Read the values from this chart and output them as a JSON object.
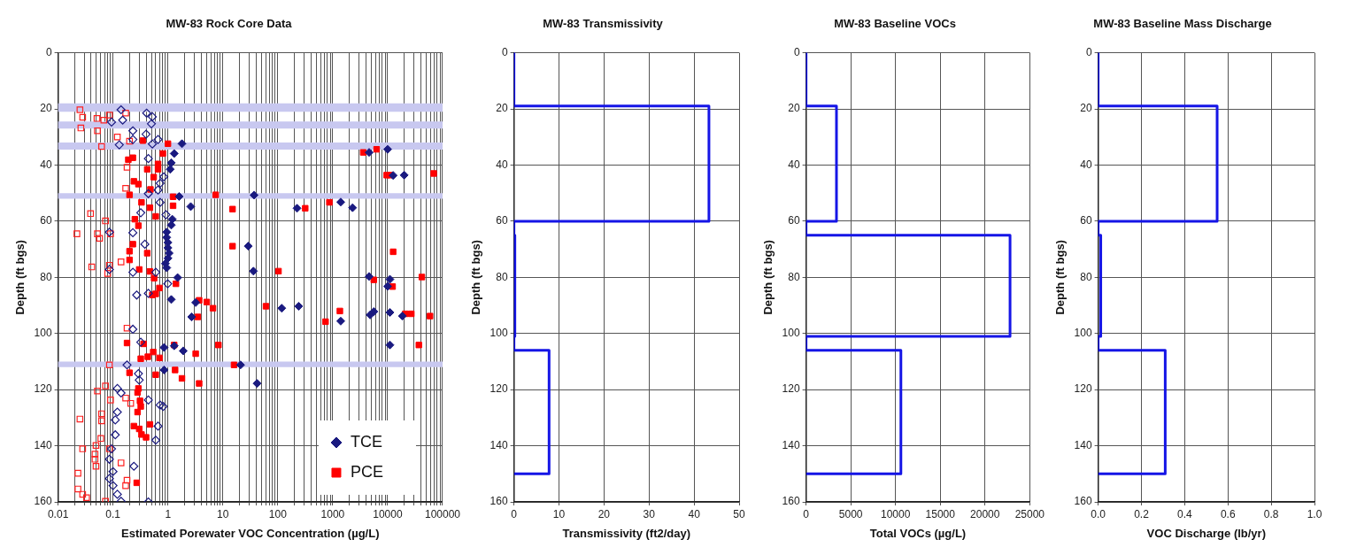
{
  "chart_data": [
    {
      "type": "scatter",
      "title": "MW-83 Rock Core Data",
      "xlabel": "Estimated Porewater VOC Concentration (µg/L)",
      "ylabel": "Depth (ft bgs)",
      "log": "x",
      "grid": true,
      "legend": "bottom right",
      "xlim": [
        0.01,
        100000
      ],
      "ylim": [
        160,
        0
      ],
      "xticks": [
        0.01,
        {
          "value": 0.02,
          "label": null
        },
        {
          "value": 0.03,
          "label": null
        },
        {
          "value": 0.04,
          "label": null
        },
        {
          "value": 0.05,
          "label": null
        },
        {
          "value": 0.06,
          "label": null
        },
        {
          "value": 0.07,
          "label": null
        },
        {
          "value": 0.08,
          "label": null
        },
        {
          "value": 0.09,
          "label": null
        },
        0.1,
        {
          "value": 0.2,
          "label": null
        },
        {
          "value": 0.3,
          "label": null
        },
        {
          "value": 0.4,
          "label": null
        },
        {
          "value": 0.5,
          "label": null
        },
        {
          "value": 0.6,
          "label": null
        },
        {
          "value": 0.7,
          "label": null
        },
        {
          "value": 0.8,
          "label": null
        },
        {
          "value": 0.9,
          "label": null
        },
        1,
        {
          "value": 2,
          "label": null
        },
        {
          "value": 3,
          "label": null
        },
        {
          "value": 4,
          "label": null
        },
        {
          "value": 5,
          "label": null
        },
        {
          "value": 6,
          "label": null
        },
        {
          "value": 7,
          "label": null
        },
        {
          "value": 8,
          "label": null
        },
        {
          "value": 9,
          "label": null
        },
        10,
        {
          "value": 20,
          "label": null
        },
        {
          "value": 30,
          "label": null
        },
        {
          "value": 40,
          "label": null
        },
        {
          "value": 50,
          "label": null
        },
        {
          "value": 60,
          "label": null
        },
        {
          "value": 70,
          "label": null
        },
        {
          "value": 80,
          "label": null
        },
        {
          "value": 90,
          "label": null
        },
        100,
        {
          "value": 200,
          "label": null
        },
        {
          "value": 300,
          "label": null
        },
        {
          "value": 400,
          "label": null
        },
        {
          "value": 500,
          "label": null
        },
        {
          "value": 600,
          "label": null
        },
        {
          "value": 700,
          "label": null
        },
        {
          "value": 800,
          "label": null
        },
        {
          "value": 900,
          "label": null
        },
        1000,
        {
          "value": 2000,
          "label": null
        },
        {
          "value": 3000,
          "label": null
        },
        {
          "value": 4000,
          "label": null
        },
        {
          "value": 5000,
          "label": null
        },
        {
          "value": 6000,
          "label": null
        },
        {
          "value": 7000,
          "label": null
        },
        {
          "value": 8000,
          "label": null
        },
        {
          "value": 9000,
          "label": null
        },
        10000,
        {
          "value": 20000,
          "label": null
        },
        {
          "value": 30000,
          "label": null
        },
        {
          "value": 40000,
          "label": null
        },
        {
          "value": 50000,
          "label": null
        },
        {
          "value": 60000,
          "label": null
        },
        {
          "value": 70000,
          "label": null
        },
        {
          "value": 80000,
          "label": null
        },
        {
          "value": 90000,
          "label": null
        },
        100000
      ],
      "yticks": [
        0,
        20,
        40,
        60,
        80,
        100,
        120,
        140,
        160
      ],
      "bands": [
        {
          "axis": "y",
          "from": 18,
          "to": 21,
          "color": "#c8c8f0"
        },
        {
          "axis": "y",
          "from": 24.5,
          "to": 27,
          "color": "#c8c8f0"
        },
        {
          "axis": "y",
          "from": 32,
          "to": 34.5,
          "color": "#c8c8f0"
        },
        {
          "axis": "y",
          "from": 50,
          "to": 52,
          "color": "#c8c8f0"
        },
        {
          "axis": "y",
          "from": 110,
          "to": 112,
          "color": "#c8c8f0"
        }
      ],
      "series": [
        {
          "color": "#1a1a80",
          "marker": "diamond",
          "x": [
            0.14,
            0.41,
            0.52,
            0.094,
            0.15,
            0.5,
            0.23,
            0.4,
            0.23,
            0.13,
            0.66,
            0.52,
            0.44,
            0.84,
            0.72,
            0.66,
            0.44,
            0.72,
            0.32,
            0.92,
            0.086,
            0.23,
            0.38,
            0.086,
            0.23,
            0.6,
            0.99,
            0.27,
            0.44,
            0.23,
            0.32,
            0.18,
            0.29,
            0.3,
            0.12,
            0.14,
            0.44,
            0.72,
            0.82,
            0.12,
            0.11,
            0.66,
            0.11,
            0.6,
            0.094,
            0.086,
            0.24,
            0.1,
            0.086,
            0.1,
            0.12,
            0.14,
            0.44
          ],
          "values": [
            20.3,
            21.5,
            22.8,
            24.7,
            24,
            25.3,
            27.8,
            29,
            30.9,
            32.8,
            30.9,
            32.5,
            37.7,
            44.2,
            46.5,
            48.9,
            50.2,
            53.3,
            57,
            57.7,
            63.9,
            64.1,
            68.2,
            77.2,
            78.2,
            78.2,
            82.3,
            86.3,
            85.7,
            98.5,
            103.1,
            111.2,
            114.3,
            116.6,
            119.6,
            121.2,
            123.7,
            125.5,
            126,
            128,
            130.8,
            133,
            136.1,
            138,
            141.1,
            144.8,
            147.3,
            149.2,
            151.7,
            154.2,
            157.3,
            159.8,
            160
          ]
        },
        {
          "color": "#ff2020",
          "marker": "square",
          "x": [
            0.025,
            0.028,
            0.026,
            0.051,
            0.068,
            0.086,
            0.17,
            0.052,
            0.062,
            0.12,
            0.2,
            0.18,
            0.17,
            0.039,
            0.073,
            0.022,
            0.052,
            0.09,
            0.057,
            0.041,
            0.086,
            0.14,
            0.08,
            0.18,
            0.086,
            0.073,
            0.052,
            0.09,
            0.17,
            0.21,
            0.025,
            0.062,
            0.062,
            0.06,
            0.028,
            0.049,
            0.047,
            0.047,
            0.086,
            0.049,
            0.023,
            0.14,
            0.18,
            0.023,
            0.028,
            0.033,
            0.073,
            0.17
          ],
          "values": [
            20.3,
            23,
            26.8,
            23.4,
            24,
            22.2,
            21.5,
            27.8,
            33.4,
            30,
            31.5,
            40.8,
            48.3,
            57.3,
            59.9,
            64.5,
            64.5,
            64.5,
            66.1,
            76.3,
            75.7,
            74.5,
            78.6,
            98.1,
            111.2,
            118.7,
            120.5,
            123.7,
            123,
            124.9,
            130.5,
            128.6,
            131.1,
            137.4,
            141.1,
            139.9,
            143,
            144.8,
            141.1,
            147.3,
            149.8,
            146.1,
            152.3,
            155.4,
            157.3,
            158.5,
            159.8,
            154.2
          ]
        },
        {
          "name": "TCE",
          "color": "#1a1a80",
          "marker": "diamond",
          "x": [
            1.8,
            1.3,
            1.15,
            1.1,
            1.6,
            2.6,
            1.2,
            1.15,
            0.95,
            0.95,
            1,
            1,
            1.05,
            1,
            0.9,
            0.95,
            1.5,
            1.15,
            3.2,
            2.7,
            0.85,
            1.3,
            1.9,
            0.85,
            21,
            10000,
            4600,
            12600,
            20000,
            37,
            224,
            1400,
            2300,
            29,
            36,
            4600,
            11000,
            10000,
            118,
            240,
            1400,
            4800,
            5600,
            11000,
            18600,
            11000,
            42
          ],
          "values": [
            32.4,
            35.9,
            39.2,
            41.5,
            51.2,
            54.8,
            59.3,
            61.4,
            63.9,
            65.8,
            67.6,
            69.5,
            71.4,
            73.2,
            75.1,
            76.6,
            80.1,
            87.9,
            89,
            94.1,
            105,
            104.4,
            106.2,
            113,
            111.2,
            34.4,
            35.5,
            43.7,
            43.6,
            50.7,
            55.4,
            53.2,
            55.2,
            68.9,
            77.8,
            79.7,
            80.7,
            83.2,
            91,
            90.3,
            95.6,
            93.4,
            92.2,
            92.5,
            93.8,
            104.1,
            117.8
          ]
        },
        {
          "name": "PCE",
          "color": "#ff0000",
          "marker": "square",
          "x": [
            0.35,
            1,
            0.81,
            0.19,
            0.23,
            0.66,
            0.66,
            0.42,
            0.55,
            0.24,
            0.29,
            0.48,
            0.2,
            1.24,
            1.24,
            7.4,
            0.33,
            0.47,
            0.6,
            0.25,
            0.29,
            0.42,
            0.23,
            0.2,
            0.2,
            0.3,
            0.47,
            0.56,
            1.4,
            0.7,
            0.6,
            0.52,
            3.7,
            5.1,
            6.6,
            3.5,
            0.36,
            0.18,
            0.54,
            8.3,
            1.3,
            3.2,
            0.7,
            0.43,
            0.32,
            0.2,
            1.35,
            1.8,
            3.7,
            0.6,
            16,
            0.29,
            0.28,
            0.31,
            0.32,
            0.28,
            0.24,
            0.3,
            0.33,
            0.4,
            0.47,
            0.27,
            3600,
            6300,
            9600,
            11000,
            69000,
            15,
            316,
            870,
            15,
            12600,
            103,
            5600,
            42000,
            12300,
            61,
            1350,
            740,
            21000,
            27000,
            59000,
            37000
          ],
          "values": [
            31.3,
            32.4,
            35.9,
            38.1,
            37.4,
            39.6,
            41.5,
            41.5,
            44.3,
            45.8,
            46.8,
            48.7,
            50.6,
            51.3,
            54.5,
            50.6,
            53.3,
            55.2,
            58.3,
            59.3,
            61.6,
            71.4,
            68.2,
            70.7,
            73.8,
            77.2,
            77.9,
            80.3,
            82.3,
            83.8,
            85.9,
            86.3,
            88.2,
            88.8,
            91,
            94.1,
            103.7,
            103.4,
            106.6,
            104.1,
            104.1,
            107.2,
            108.7,
            108.3,
            109,
            114,
            113,
            116,
            117.8,
            114.7,
            111.2,
            119.6,
            121,
            124,
            126,
            128,
            133,
            134,
            136,
            137,
            132.4,
            153.2,
            35.5,
            34.4,
            43.6,
            43.6,
            43,
            55.7,
            55.4,
            53.3,
            68.9,
            70.9,
            77.8,
            80.9,
            79.9,
            83.3,
            90.3,
            92,
            95.8,
            93,
            93,
            93.8,
            104.1
          ]
        }
      ]
    },
    {
      "type": "line",
      "title": "MW-83 Transmissivity",
      "xlabel": "Transmissivity (ft2/day)",
      "ylabel": "Depth (ft bgs)",
      "grid": true,
      "xlim": [
        0,
        50
      ],
      "ylim": [
        160,
        0
      ],
      "xticks": [
        0,
        10,
        20,
        30,
        40,
        50
      ],
      "yticks": [
        0,
        20,
        40,
        60,
        80,
        100,
        120,
        140,
        160
      ],
      "series": [
        {
          "color": "#1515e6",
          "x": [
            0,
            0,
            43.3,
            43.3,
            0,
            0,
            0.2,
            0.2,
            0,
            0,
            7.8,
            7.8,
            0
          ],
          "values": [
            0,
            19,
            19,
            60,
            60,
            65,
            65,
            101,
            101,
            106,
            106,
            150,
            150
          ]
        }
      ]
    },
    {
      "type": "line",
      "title": "MW-83 Baseline VOCs",
      "xlabel": "Total VOCs (µg/L)",
      "ylabel": "Depth (ft bgs)",
      "grid": true,
      "xlim": [
        0,
        25000
      ],
      "ylim": [
        160,
        0
      ],
      "xticks": [
        0,
        5000,
        10000,
        15000,
        20000,
        25000
      ],
      "yticks": [
        0,
        20,
        40,
        60,
        80,
        100,
        120,
        140,
        160
      ],
      "series": [
        {
          "color": "#1515e6",
          "x": [
            0,
            0,
            3400,
            3400,
            0,
            0,
            22800,
            22800,
            0,
            0,
            10600,
            10600,
            0
          ],
          "values": [
            0,
            19,
            19,
            60,
            60,
            65,
            65,
            101,
            101,
            106,
            106,
            150,
            150
          ]
        }
      ]
    },
    {
      "type": "line",
      "title": "MW-83 Baseline Mass Discharge",
      "xlabel": "VOC Discharge (lb/yr)",
      "ylabel": "Depth (ft bgs)",
      "grid": true,
      "xlim": [
        0,
        1
      ],
      "ylim": [
        160,
        0
      ],
      "xticks": [
        {
          "value": 0,
          "label": "0.0"
        },
        0.2,
        0.4,
        0.6,
        0.8,
        {
          "value": 1,
          "label": "1.0"
        }
      ],
      "yticks": [
        0,
        20,
        40,
        60,
        80,
        100,
        120,
        140,
        160
      ],
      "series": [
        {
          "color": "#1515e6",
          "x": [
            0,
            0,
            0.55,
            0.55,
            0,
            0,
            0.012,
            0.012,
            0,
            0,
            0.31,
            0.31,
            0
          ],
          "values": [
            0,
            19,
            19,
            60,
            60,
            65,
            65,
            101,
            101,
            106,
            106,
            150,
            150
          ]
        }
      ]
    }
  ]
}
